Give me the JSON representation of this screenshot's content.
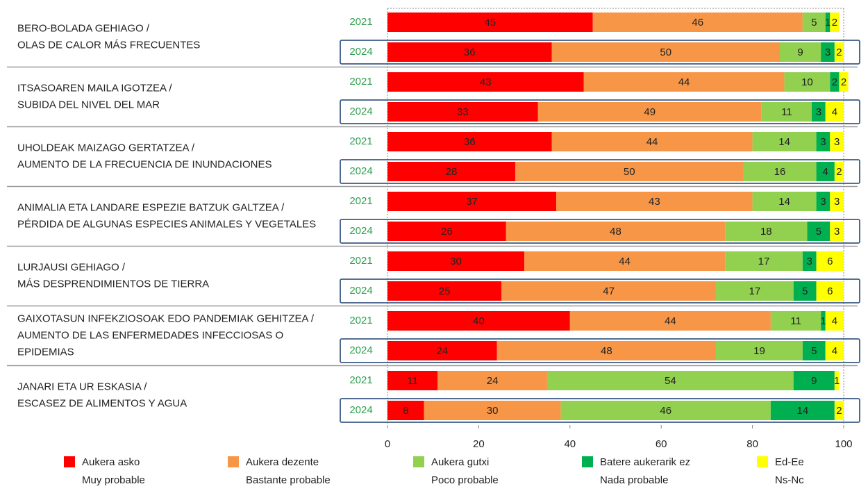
{
  "chart_data": {
    "type": "stacked-bar-horizontal",
    "groups": [
      [
        "BERO-BOLADA GEHIAGO /",
        "OLAS DE CALOR MÁS FRECUENTES"
      ],
      [
        "ITSASOAREN MAILA IGOTZEA /",
        "SUBIDA DEL NIVEL DEL MAR"
      ],
      [
        "UHOLDEAK MAIZAGO GERTATZEA /",
        "AUMENTO DE LA FRECUENCIA DE INUNDACIONES"
      ],
      [
        "ANIMALIA ETA LANDARE ESPEZIE BATZUK GALTZEA /",
        "PÉRDIDA DE ALGUNAS ESPECIES ANIMALES Y VEGETALES"
      ],
      [
        "LURJAUSI GEHIAGO /",
        "MÁS DESPRENDIMIENTOS DE TIERRA"
      ],
      [
        "GAIXOTASUN INFEKZIOSOAK EDO PANDEMIAK GEHITZEA /",
        "AUMENTO DE LAS ENFERMEDADES INFECCIOSAS O",
        "EPIDEMIAS"
      ],
      [
        "JANARI ETA UR ESKASIA /",
        "ESCASEZ DE ALIMENTOS Y AGUA"
      ]
    ],
    "categories": [
      "2021",
      "2024",
      "2021",
      "2024",
      "2021",
      "2024",
      "2021",
      "2024",
      "2021",
      "2024",
      "2021",
      "2024",
      "2021",
      "2024"
    ],
    "series": [
      {
        "name": "Aukera asko",
        "name_es": "Muy probable",
        "color": "#ff0000",
        "values": [
          45,
          36,
          43,
          33,
          36,
          28,
          37,
          26,
          30,
          25,
          40,
          24,
          11,
          8
        ]
      },
      {
        "name": "Aukera dezente",
        "name_es": "Bastante probable",
        "color": "#f79646",
        "values": [
          46,
          50,
          44,
          49,
          44,
          50,
          43,
          48,
          44,
          47,
          44,
          48,
          24,
          30
        ]
      },
      {
        "name": "Aukera gutxi",
        "name_es": "Poco probable",
        "color": "#92d050",
        "values": [
          5,
          9,
          10,
          11,
          14,
          16,
          14,
          18,
          17,
          17,
          11,
          19,
          54,
          46
        ]
      },
      {
        "name": "Batere aukerarik ez",
        "name_es": "Nada probable",
        "color": "#00b050",
        "values": [
          1,
          3,
          2,
          3,
          3,
          4,
          3,
          5,
          3,
          5,
          1,
          5,
          9,
          14
        ]
      },
      {
        "name": "Ed-Ee",
        "name_es": "Ns-Nc",
        "color": "#ffff00",
        "values": [
          2,
          2,
          2,
          4,
          3,
          2,
          3,
          3,
          6,
          6,
          4,
          4,
          1,
          2
        ]
      }
    ],
    "xlim": [
      0,
      100
    ],
    "xticks": [
      0,
      20,
      40,
      60,
      80,
      100
    ]
  }
}
